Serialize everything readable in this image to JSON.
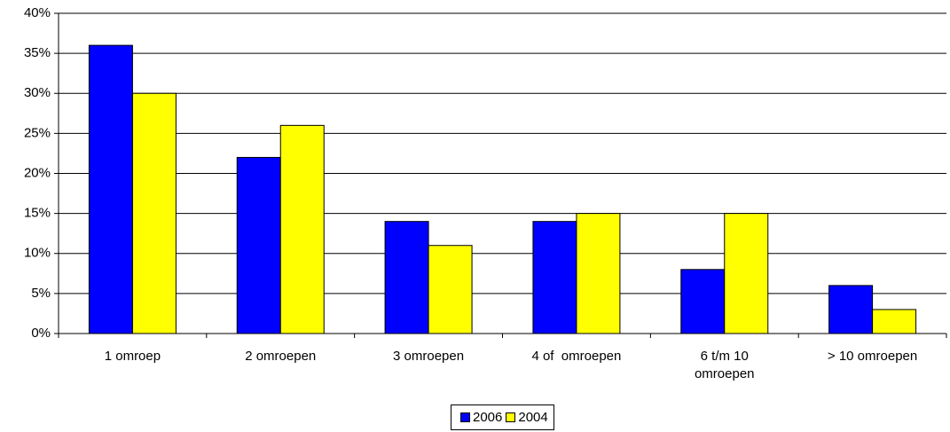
{
  "chart_data": {
    "type": "bar",
    "categories": [
      "1 omroep",
      "2 omroepen",
      "3 omroepen",
      "4 of  omroepen",
      "6 t/m 10\nomroepen",
      "> 10 omroepen"
    ],
    "series": [
      {
        "name": "2006",
        "color": "#0000ff",
        "values": [
          36,
          22,
          14,
          14,
          8,
          6
        ]
      },
      {
        "name": "2004",
        "color": "#ffff00",
        "values": [
          30,
          26,
          11,
          15,
          15,
          3
        ]
      }
    ],
    "ylim": [
      0,
      40
    ],
    "yticks": [
      {
        "value": 0,
        "label": "0%"
      },
      {
        "value": 5,
        "label": "5%"
      },
      {
        "value": 10,
        "label": "10%"
      },
      {
        "value": 15,
        "label": "15%"
      },
      {
        "value": 20,
        "label": "20%"
      },
      {
        "value": 25,
        "label": "25%"
      },
      {
        "value": 30,
        "label": "30%"
      },
      {
        "value": 35,
        "label": "35%"
      },
      {
        "value": 40,
        "label": "40%"
      }
    ],
    "grid": true,
    "legend": "bottom"
  }
}
